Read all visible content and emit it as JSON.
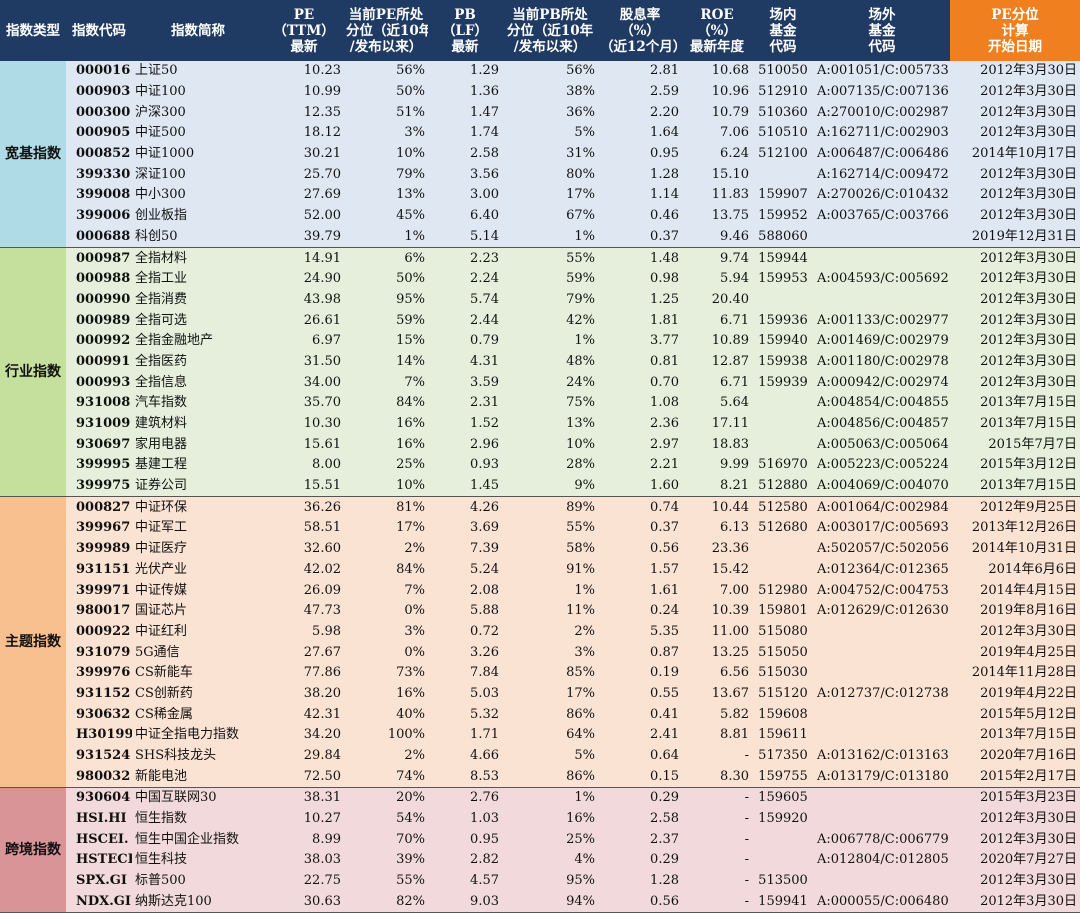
{
  "columns": [
    {
      "key": "category",
      "lines": [
        "指数类型"
      ]
    },
    {
      "key": "code",
      "lines": [
        "指数代码"
      ]
    },
    {
      "key": "name",
      "lines": [
        "指数简称"
      ]
    },
    {
      "key": "pe",
      "lines": [
        "PE",
        "（TTM）",
        "最新"
      ]
    },
    {
      "key": "pe_pct",
      "lines": [
        "当前PE所处",
        "分位（近10年",
        "/发布以来）"
      ]
    },
    {
      "key": "pb",
      "lines": [
        "PB",
        "（LF）",
        "最新"
      ]
    },
    {
      "key": "pb_pct",
      "lines": [
        "当前PB所处",
        "分位（近10年",
        "/发布以来）"
      ]
    },
    {
      "key": "div",
      "lines": [
        "股息率",
        "（%）",
        "（近12个月）"
      ]
    },
    {
      "key": "roe",
      "lines": [
        "ROE",
        "（%）",
        "最新年度"
      ]
    },
    {
      "key": "etf",
      "lines": [
        "场内",
        "基金",
        "代码"
      ]
    },
    {
      "key": "otc",
      "lines": [
        "场外",
        "基金",
        "代码"
      ]
    },
    {
      "key": "start",
      "lines": [
        "PE分位",
        "计算",
        "开始日期"
      ]
    }
  ],
  "colors": {
    "header_bg": "#1f3a63",
    "header_highlight_bg": "#f0801f",
    "broad_cat": "#aedbe6",
    "broad_row": "#dfe7f3",
    "industry_cat": "#c5df9c",
    "industry_row": "#e6efdc",
    "theme_cat": "#f8bf8f",
    "theme_row": "#fbe3d4",
    "cross_cat": "#d99497",
    "cross_row": "#f2dadc"
  },
  "groups": [
    {
      "id": "broad",
      "label": "宽基指数",
      "rows": [
        [
          "000016",
          "上证50",
          "10.23",
          "56%",
          "1.29",
          "56%",
          "2.81",
          "10.68",
          "510050",
          "A:001051/C:005733",
          "2012年3月30日"
        ],
        [
          "000903",
          "中证100",
          "10.99",
          "50%",
          "1.36",
          "38%",
          "2.59",
          "10.96",
          "512910",
          "A:007135/C:007136",
          "2012年3月30日"
        ],
        [
          "000300",
          "沪深300",
          "12.35",
          "51%",
          "1.47",
          "36%",
          "2.20",
          "10.79",
          "510360",
          "A:270010/C:002987",
          "2012年3月30日"
        ],
        [
          "000905",
          "中证500",
          "18.12",
          "3%",
          "1.74",
          "5%",
          "1.64",
          "7.06",
          "510510",
          "A:162711/C:002903",
          "2012年3月30日"
        ],
        [
          "000852",
          "中证1000",
          "30.21",
          "10%",
          "2.58",
          "31%",
          "0.95",
          "6.24",
          "512100",
          "A:006487/C:006486",
          "2014年10月17日"
        ],
        [
          "399330",
          "深证100",
          "25.70",
          "79%",
          "3.56",
          "80%",
          "1.28",
          "15.10",
          "",
          "A:162714/C:009472",
          "2012年3月30日"
        ],
        [
          "399008",
          "中小300",
          "27.69",
          "13%",
          "3.00",
          "17%",
          "1.14",
          "11.83",
          "159907",
          "A:270026/C:010432",
          "2012年3月30日"
        ],
        [
          "399006",
          "创业板指",
          "52.00",
          "45%",
          "6.40",
          "67%",
          "0.46",
          "13.75",
          "159952",
          "A:003765/C:003766",
          "2012年3月30日"
        ],
        [
          "000688",
          "科创50",
          "39.79",
          "1%",
          "5.14",
          "1%",
          "0.37",
          "9.46",
          "588060",
          "",
          "2019年12月31日"
        ]
      ]
    },
    {
      "id": "industry",
      "label": "行业指数",
      "rows": [
        [
          "000987",
          "全指材料",
          "14.91",
          "6%",
          "2.23",
          "55%",
          "1.48",
          "9.74",
          "159944",
          "",
          "2012年3月30日"
        ],
        [
          "000988",
          "全指工业",
          "24.90",
          "50%",
          "2.24",
          "59%",
          "0.98",
          "5.94",
          "159953",
          "A:004593/C:005692",
          "2012年3月30日"
        ],
        [
          "000990",
          "全指消费",
          "43.98",
          "95%",
          "5.74",
          "79%",
          "1.25",
          "20.40",
          "",
          "",
          "2012年3月30日"
        ],
        [
          "000989",
          "全指可选",
          "26.61",
          "59%",
          "2.44",
          "42%",
          "1.81",
          "6.71",
          "159936",
          "A:001133/C:002977",
          "2012年3月30日"
        ],
        [
          "000992",
          "全指金融地产",
          "6.97",
          "15%",
          "0.79",
          "1%",
          "3.77",
          "10.89",
          "159940",
          "A:001469/C:002979",
          "2012年3月30日"
        ],
        [
          "000991",
          "全指医药",
          "31.50",
          "14%",
          "4.31",
          "48%",
          "0.81",
          "12.87",
          "159938",
          "A:001180/C:002978",
          "2012年3月30日"
        ],
        [
          "000993",
          "全指信息",
          "34.00",
          "7%",
          "3.59",
          "24%",
          "0.70",
          "6.71",
          "159939",
          "A:000942/C:002974",
          "2012年3月30日"
        ],
        [
          "931008",
          "汽车指数",
          "35.70",
          "84%",
          "2.31",
          "75%",
          "1.08",
          "5.64",
          "",
          "A:004854/C:004855",
          "2013年7月15日"
        ],
        [
          "931009",
          "建筑材料",
          "10.30",
          "16%",
          "1.52",
          "13%",
          "2.36",
          "17.11",
          "",
          "A:004856/C:004857",
          "2013年7月15日"
        ],
        [
          "930697",
          "家用电器",
          "15.61",
          "16%",
          "2.96",
          "10%",
          "2.97",
          "18.83",
          "",
          "A:005063/C:005064",
          "2015年7月7日"
        ],
        [
          "399995",
          "基建工程",
          "8.00",
          "25%",
          "0.93",
          "28%",
          "2.21",
          "9.99",
          "516970",
          "A:005223/C:005224",
          "2015年3月12日"
        ],
        [
          "399975",
          "证券公司",
          "15.51",
          "10%",
          "1.45",
          "9%",
          "1.60",
          "8.21",
          "512880",
          "A:004069/C:004070",
          "2013年7月15日"
        ]
      ]
    },
    {
      "id": "theme",
      "label": "主题指数",
      "rows": [
        [
          "000827",
          "中证环保",
          "36.26",
          "81%",
          "4.26",
          "89%",
          "0.74",
          "10.44",
          "512580",
          "A:001064/C:002984",
          "2012年9月25日"
        ],
        [
          "399967",
          "中证军工",
          "58.51",
          "17%",
          "3.69",
          "55%",
          "0.37",
          "6.13",
          "512680",
          "A:003017/C:005693",
          "2013年12月26日"
        ],
        [
          "399989",
          "中证医疗",
          "32.60",
          "2%",
          "7.39",
          "58%",
          "0.56",
          "23.36",
          "",
          "A:502057/C:502056",
          "2014年10月31日"
        ],
        [
          "931151",
          "光伏产业",
          "42.02",
          "84%",
          "5.24",
          "91%",
          "1.57",
          "15.42",
          "",
          "A:012364/C:012365",
          "2014年6月6日"
        ],
        [
          "399971",
          "中证传媒",
          "26.09",
          "7%",
          "2.08",
          "1%",
          "1.61",
          "7.00",
          "512980",
          "A:004752/C:004753",
          "2014年4月15日"
        ],
        [
          "980017",
          "国证芯片",
          "47.73",
          "0%",
          "5.88",
          "11%",
          "0.24",
          "10.39",
          "159801",
          "A:012629/C:012630",
          "2019年8月16日"
        ],
        [
          "000922",
          "中证红利",
          "5.98",
          "3%",
          "0.72",
          "2%",
          "5.35",
          "11.00",
          "515080",
          "",
          "2012年3月30日"
        ],
        [
          "931079",
          "5G通信",
          "27.67",
          "0%",
          "3.26",
          "3%",
          "0.87",
          "13.25",
          "515050",
          "",
          "2019年4月25日"
        ],
        [
          "399976",
          "CS新能车",
          "77.86",
          "73%",
          "7.84",
          "85%",
          "0.19",
          "6.56",
          "515030",
          "",
          "2014年11月28日"
        ],
        [
          "931152",
          "CS创新药",
          "38.20",
          "16%",
          "5.03",
          "17%",
          "0.55",
          "13.67",
          "515120",
          "A:012737/C:012738",
          "2019年4月22日"
        ],
        [
          "930632",
          "CS稀金属",
          "42.31",
          "40%",
          "5.32",
          "86%",
          "0.41",
          "5.82",
          "159608",
          "",
          "2015年5月12日"
        ],
        [
          "H30199",
          "中证全指电力指数",
          "34.20",
          "100%",
          "1.71",
          "64%",
          "2.41",
          "8.81",
          "159611",
          "",
          "2013年7月15日"
        ],
        [
          "931524",
          "SHS科技龙头",
          "29.84",
          "2%",
          "4.66",
          "5%",
          "0.64",
          "-",
          "517350",
          "A:013162/C:013163",
          "2020年7月16日"
        ],
        [
          "980032",
          "新能电池",
          "72.50",
          "74%",
          "8.53",
          "86%",
          "0.15",
          "8.30",
          "159755",
          "A:013179/C:013180",
          "2015年2月17日"
        ]
      ]
    },
    {
      "id": "cross",
      "label": "跨境指数",
      "rows": [
        [
          "930604",
          "中国互联网30",
          "38.31",
          "20%",
          "2.76",
          "1%",
          "0.29",
          "-",
          "159605",
          "",
          "2015年3月23日"
        ],
        [
          "HSI.HI",
          "恒生指数",
          "10.27",
          "54%",
          "1.03",
          "16%",
          "2.58",
          "-",
          "159920",
          "",
          "2012年3月30日"
        ],
        [
          "HSCEI.",
          "恒生中国企业指数",
          "8.99",
          "70%",
          "0.95",
          "25%",
          "2.37",
          "-",
          "",
          "A:006778/C:006779",
          "2012年3月30日"
        ],
        [
          "HSTECH",
          "恒生科技",
          "38.03",
          "39%",
          "2.82",
          "4%",
          "0.29",
          "-",
          "",
          "A:012804/C:012805",
          "2020年7月27日"
        ],
        [
          "SPX.GI",
          "标普500",
          "22.75",
          "55%",
          "4.57",
          "95%",
          "1.28",
          "-",
          "513500",
          "",
          "2012年3月30日"
        ],
        [
          "NDX.GI",
          "纳斯达克100",
          "30.63",
          "82%",
          "9.03",
          "94%",
          "0.56",
          "-",
          "159941",
          "A:000055/C:006480",
          "2012年3月30日"
        ]
      ]
    }
  ]
}
